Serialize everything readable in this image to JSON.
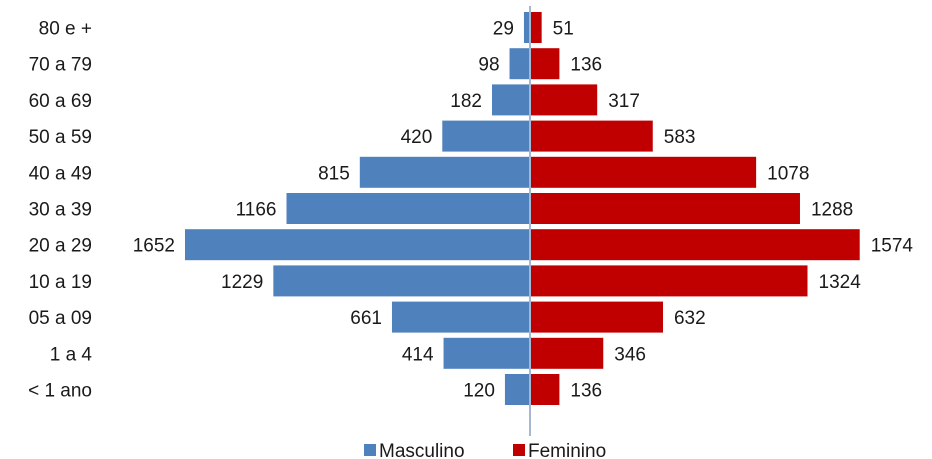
{
  "chart_data": {
    "type": "bar",
    "orientation": "horizontal",
    "layout": "population-pyramid",
    "categories": [
      "80 e +",
      "70 a 79",
      "60 a 69",
      "50 a 59",
      "40 a 49",
      "30 a 39",
      "20 a 29",
      "10 a 19",
      "05 a 09",
      "1 a 4",
      "< 1 ano"
    ],
    "series": [
      {
        "name": "Masculino",
        "color": "#4f81bd",
        "side": "left",
        "values": [
          29,
          98,
          182,
          420,
          815,
          1166,
          1652,
          1229,
          661,
          414,
          120
        ]
      },
      {
        "name": "Feminino",
        "color": "#c00000",
        "side": "right",
        "values": [
          51,
          136,
          317,
          583,
          1078,
          1288,
          1574,
          1324,
          632,
          346,
          136
        ]
      }
    ],
    "title": "",
    "xlabel": "",
    "ylabel": "",
    "xlim": [
      0,
      1652
    ],
    "grid": false,
    "legend": {
      "position": "bottom",
      "items": [
        "Masculino",
        "Feminino"
      ]
    },
    "data_labels": true
  }
}
